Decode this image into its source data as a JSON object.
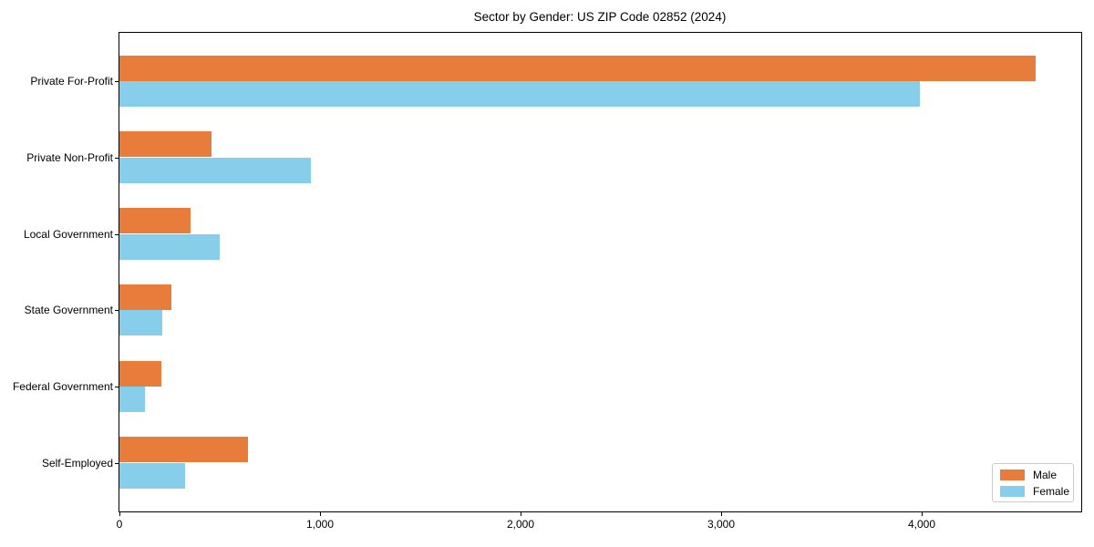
{
  "chart_data": {
    "type": "bar",
    "orientation": "horizontal",
    "title": "Sector by Gender: US ZIP Code 02852 (2024)",
    "categories": [
      "Private For-Profit",
      "Private Non-Profit",
      "Local Government",
      "State Government",
      "Federal Government",
      "Self-Employed"
    ],
    "series": [
      {
        "name": "Male",
        "color": "#e87d3b",
        "values": [
          4565,
          460,
          355,
          260,
          210,
          640
        ]
      },
      {
        "name": "Female",
        "color": "#87ceeb",
        "values": [
          3990,
          955,
          500,
          215,
          125,
          325
        ]
      }
    ],
    "xlabel": "",
    "ylabel": "",
    "xlim": [
      0,
      4793
    ],
    "xticks": {
      "values": [
        0,
        1000,
        2000,
        3000,
        4000
      ],
      "labels": [
        "0",
        "1,000",
        "2,000",
        "3,000",
        "4,000"
      ]
    },
    "grid": false,
    "legend_position": "lower-right"
  },
  "colors": {
    "male_bar": "#e87d3b",
    "female_bar": "#87ceeb",
    "axis": "#000000",
    "legend_border": "#cccccc",
    "background": "#ffffff"
  }
}
